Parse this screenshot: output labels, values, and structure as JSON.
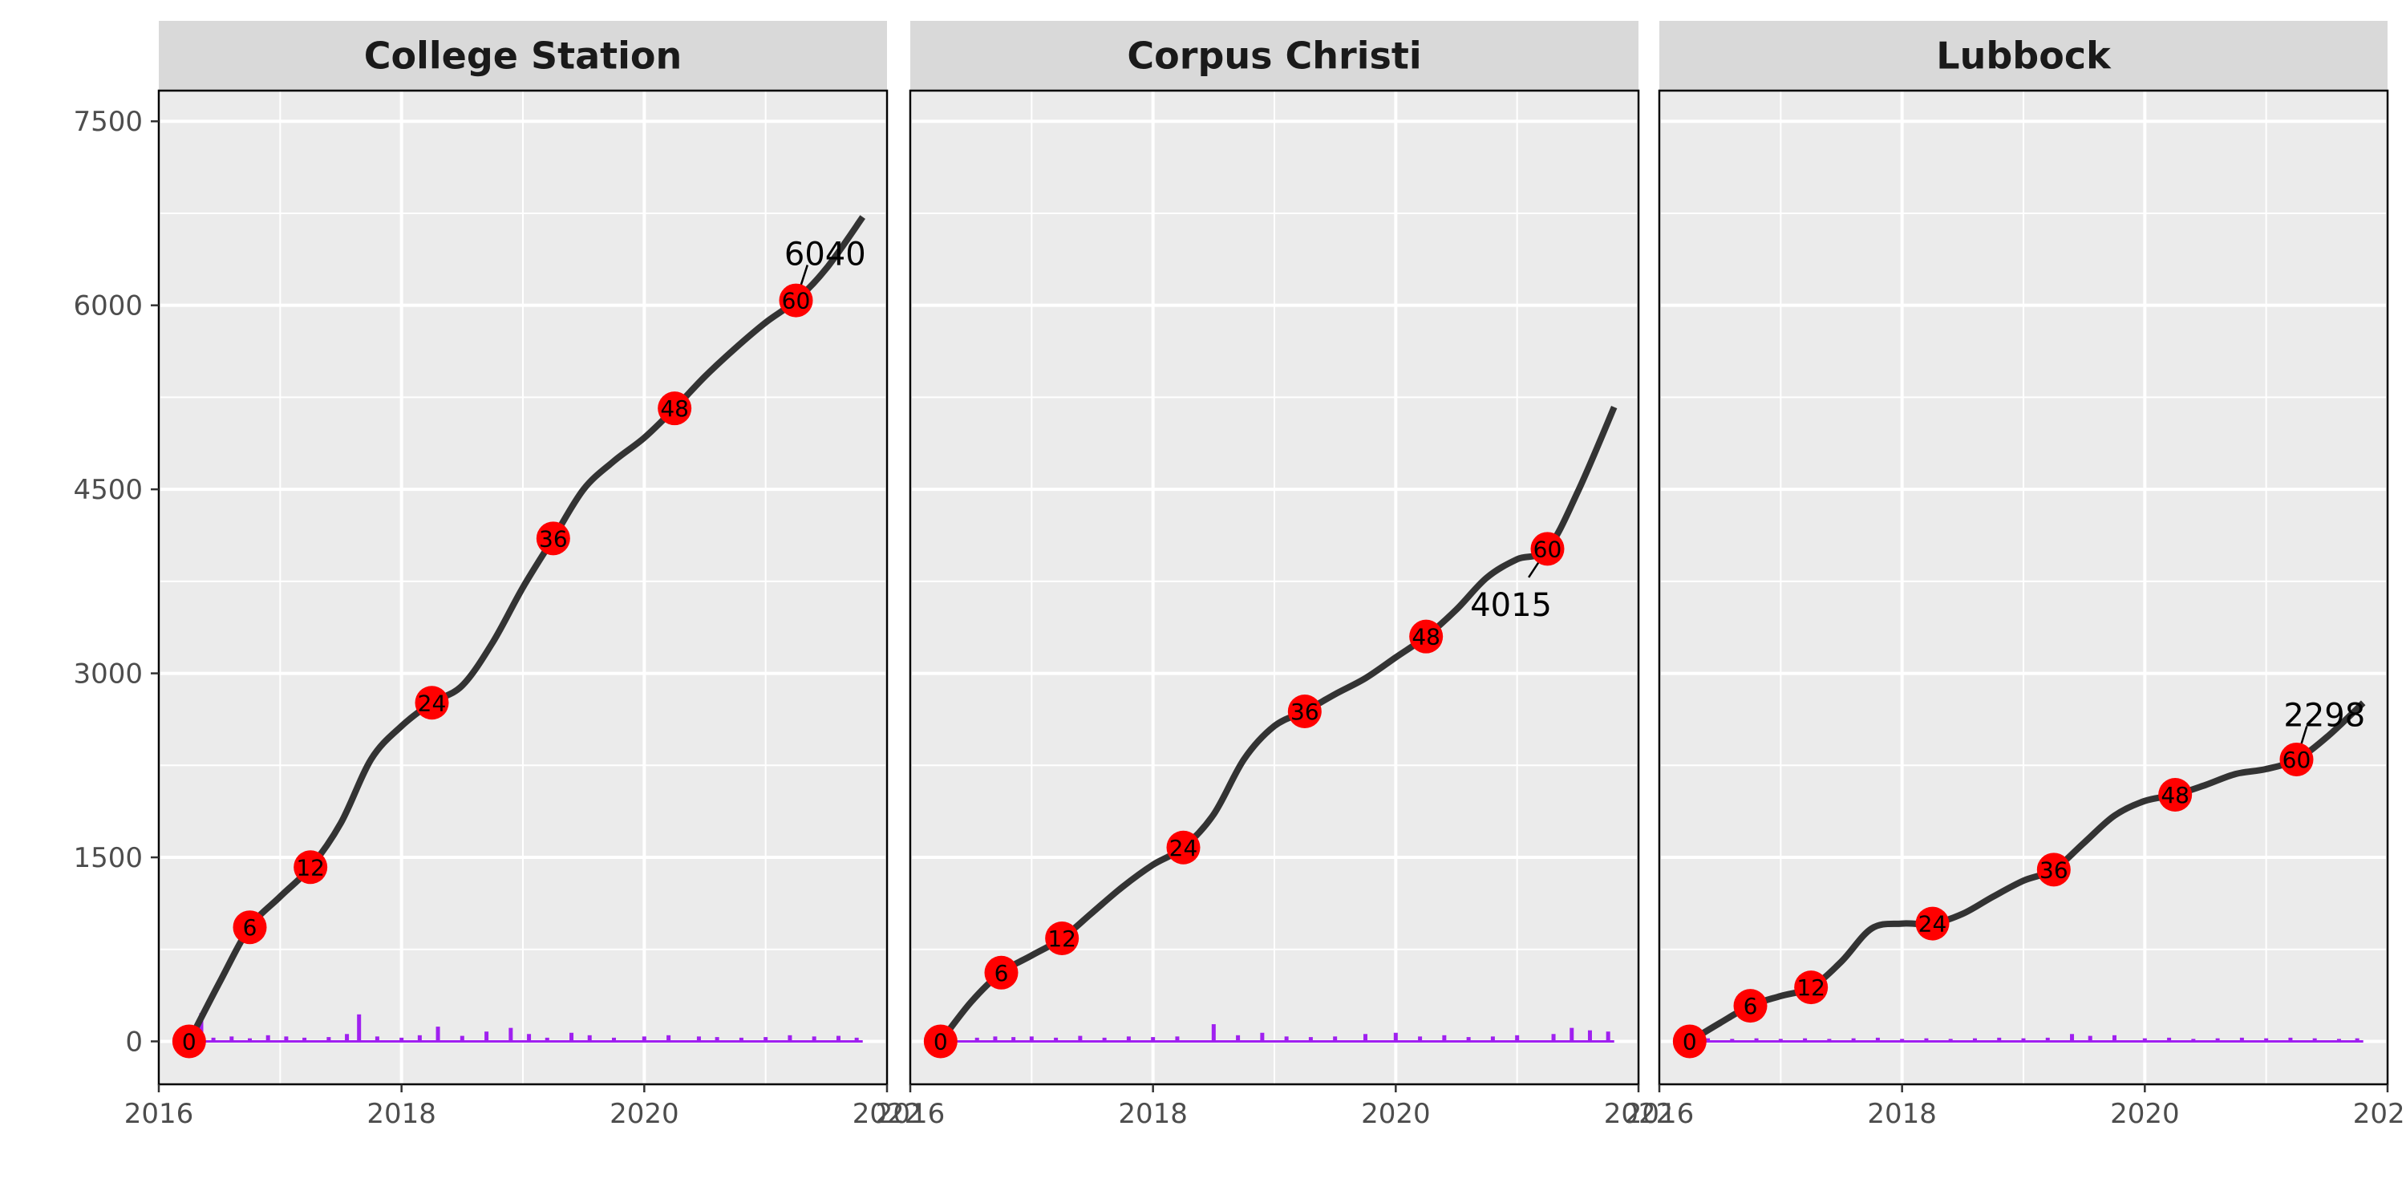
{
  "chart_data": {
    "type": "line",
    "facet_variable": "city",
    "ylim": [
      -350,
      7750
    ],
    "xlim": [
      2016.0,
      2022.0
    ],
    "y_ticks": [
      0,
      1500,
      3000,
      4500,
      6000,
      7500
    ],
    "y_tick_labels": [
      "0",
      "1500",
      "3000",
      "4500",
      "6000",
      "7500"
    ],
    "x_ticks": [
      2016,
      2018,
      2020,
      2022
    ],
    "x_tick_labels": [
      "2016",
      "2018",
      "2020",
      "2022"
    ],
    "grid": true,
    "colors": {
      "panel_background": "#ebebeb",
      "strip_background": "#d9d9d9",
      "grid": "#ffffff",
      "line": "#333333",
      "marker": "#ff0000",
      "bars": "#a020f0"
    },
    "panels": [
      {
        "title": "College Station",
        "cumulative": [
          [
            2016.25,
            0
          ],
          [
            2016.5,
            480
          ],
          [
            2016.75,
            930
          ],
          [
            2017.0,
            1180
          ],
          [
            2017.25,
            1420
          ],
          [
            2017.5,
            1780
          ],
          [
            2017.75,
            2300
          ],
          [
            2018.0,
            2570
          ],
          [
            2018.25,
            2760
          ],
          [
            2018.5,
            2900
          ],
          [
            2018.75,
            3250
          ],
          [
            2019.0,
            3700
          ],
          [
            2019.25,
            4100
          ],
          [
            2019.5,
            4500
          ],
          [
            2019.75,
            4730
          ],
          [
            2020.0,
            4920
          ],
          [
            2020.25,
            5160
          ],
          [
            2020.5,
            5420
          ],
          [
            2020.75,
            5650
          ],
          [
            2021.0,
            5860
          ],
          [
            2021.25,
            6040
          ],
          [
            2021.5,
            6300
          ],
          [
            2021.8,
            6720
          ]
        ],
        "markers": [
          {
            "x": 2016.25,
            "y": 0,
            "label": "0"
          },
          {
            "x": 2016.75,
            "y": 930,
            "label": "6"
          },
          {
            "x": 2017.25,
            "y": 1420,
            "label": "12"
          },
          {
            "x": 2018.25,
            "y": 2760,
            "label": "24"
          },
          {
            "x": 2019.25,
            "y": 4100,
            "label": "36"
          },
          {
            "x": 2020.25,
            "y": 5160,
            "label": "48"
          },
          {
            "x": 2021.25,
            "y": 6040,
            "label": "60"
          }
        ],
        "end_label": {
          "text": "6040",
          "x": 2021.49,
          "y": 6420,
          "point": [
            2021.25,
            6040
          ]
        },
        "bars": [
          [
            2016.35,
            230
          ],
          [
            2016.45,
            30
          ],
          [
            2016.6,
            40
          ],
          [
            2016.75,
            25
          ],
          [
            2016.9,
            50
          ],
          [
            2017.05,
            40
          ],
          [
            2017.2,
            30
          ],
          [
            2017.4,
            35
          ],
          [
            2017.55,
            60
          ],
          [
            2017.65,
            220
          ],
          [
            2017.8,
            40
          ],
          [
            2018.0,
            30
          ],
          [
            2018.15,
            50
          ],
          [
            2018.3,
            120
          ],
          [
            2018.5,
            45
          ],
          [
            2018.7,
            80
          ],
          [
            2018.9,
            110
          ],
          [
            2019.05,
            60
          ],
          [
            2019.2,
            30
          ],
          [
            2019.4,
            70
          ],
          [
            2019.55,
            50
          ],
          [
            2019.75,
            30
          ],
          [
            2020.0,
            40
          ],
          [
            2020.2,
            50
          ],
          [
            2020.45,
            40
          ],
          [
            2020.6,
            35
          ],
          [
            2020.8,
            30
          ],
          [
            2021.0,
            35
          ],
          [
            2021.2,
            50
          ],
          [
            2021.4,
            40
          ],
          [
            2021.6,
            45
          ],
          [
            2021.75,
            30
          ]
        ]
      },
      {
        "title": "Corpus Christi",
        "cumulative": [
          [
            2016.25,
            0
          ],
          [
            2016.5,
            320
          ],
          [
            2016.75,
            560
          ],
          [
            2017.0,
            700
          ],
          [
            2017.25,
            840
          ],
          [
            2017.5,
            1050
          ],
          [
            2017.75,
            1260
          ],
          [
            2018.0,
            1440
          ],
          [
            2018.25,
            1580
          ],
          [
            2018.5,
            1850
          ],
          [
            2018.75,
            2300
          ],
          [
            2019.0,
            2570
          ],
          [
            2019.25,
            2690
          ],
          [
            2019.5,
            2830
          ],
          [
            2019.75,
            2960
          ],
          [
            2020.0,
            3130
          ],
          [
            2020.25,
            3300
          ],
          [
            2020.5,
            3520
          ],
          [
            2020.75,
            3780
          ],
          [
            2021.0,
            3930
          ],
          [
            2021.25,
            4015
          ],
          [
            2021.5,
            4480
          ],
          [
            2021.8,
            5170
          ]
        ],
        "markers": [
          {
            "x": 2016.25,
            "y": 0,
            "label": "0"
          },
          {
            "x": 2016.75,
            "y": 560,
            "label": "6"
          },
          {
            "x": 2017.25,
            "y": 840,
            "label": "12"
          },
          {
            "x": 2018.25,
            "y": 1580,
            "label": "24"
          },
          {
            "x": 2019.25,
            "y": 2690,
            "label": "36"
          },
          {
            "x": 2020.25,
            "y": 3300,
            "label": "48"
          },
          {
            "x": 2021.25,
            "y": 4015,
            "label": "60"
          }
        ],
        "end_label": {
          "text": "4015",
          "x": 2020.95,
          "y": 3560,
          "point": [
            2021.25,
            4015
          ]
        },
        "bars": [
          [
            2016.35,
            60
          ],
          [
            2016.55,
            30
          ],
          [
            2016.7,
            40
          ],
          [
            2016.85,
            35
          ],
          [
            2017.0,
            40
          ],
          [
            2017.2,
            30
          ],
          [
            2017.4,
            45
          ],
          [
            2017.6,
            30
          ],
          [
            2017.8,
            40
          ],
          [
            2018.0,
            35
          ],
          [
            2018.2,
            40
          ],
          [
            2018.5,
            140
          ],
          [
            2018.7,
            50
          ],
          [
            2018.9,
            70
          ],
          [
            2019.1,
            40
          ],
          [
            2019.3,
            35
          ],
          [
            2019.5,
            40
          ],
          [
            2019.75,
            60
          ],
          [
            2020.0,
            70
          ],
          [
            2020.2,
            40
          ],
          [
            2020.4,
            50
          ],
          [
            2020.6,
            35
          ],
          [
            2020.8,
            40
          ],
          [
            2021.0,
            50
          ],
          [
            2021.3,
            60
          ],
          [
            2021.45,
            110
          ],
          [
            2021.6,
            90
          ],
          [
            2021.75,
            80
          ]
        ]
      },
      {
        "title": "Lubbock",
        "cumulative": [
          [
            2016.25,
            0
          ],
          [
            2016.5,
            150
          ],
          [
            2016.75,
            290
          ],
          [
            2017.0,
            370
          ],
          [
            2017.25,
            440
          ],
          [
            2017.5,
            650
          ],
          [
            2017.75,
            920
          ],
          [
            2018.0,
            960
          ],
          [
            2018.25,
            960
          ],
          [
            2018.5,
            1040
          ],
          [
            2018.75,
            1180
          ],
          [
            2019.0,
            1310
          ],
          [
            2019.25,
            1400
          ],
          [
            2019.5,
            1620
          ],
          [
            2019.75,
            1840
          ],
          [
            2020.0,
            1960
          ],
          [
            2020.25,
            2010
          ],
          [
            2020.5,
            2090
          ],
          [
            2020.75,
            2180
          ],
          [
            2021.0,
            2220
          ],
          [
            2021.25,
            2298
          ],
          [
            2021.5,
            2480
          ],
          [
            2021.8,
            2760
          ]
        ],
        "markers": [
          {
            "x": 2016.25,
            "y": 0,
            "label": "0"
          },
          {
            "x": 2016.75,
            "y": 290,
            "label": "6"
          },
          {
            "x": 2017.25,
            "y": 440,
            "label": "12"
          },
          {
            "x": 2018.25,
            "y": 960,
            "label": "24"
          },
          {
            "x": 2019.25,
            "y": 1400,
            "label": "36"
          },
          {
            "x": 2020.25,
            "y": 2010,
            "label": "48"
          },
          {
            "x": 2021.25,
            "y": 2298,
            "label": "60"
          }
        ],
        "end_label": {
          "text": "2298",
          "x": 2021.48,
          "y": 2660,
          "point": [
            2021.25,
            2298
          ]
        },
        "bars": [
          [
            2016.4,
            25
          ],
          [
            2016.6,
            20
          ],
          [
            2016.8,
            25
          ],
          [
            2017.0,
            20
          ],
          [
            2017.2,
            25
          ],
          [
            2017.4,
            20
          ],
          [
            2017.6,
            25
          ],
          [
            2017.8,
            30
          ],
          [
            2018.0,
            20
          ],
          [
            2018.2,
            25
          ],
          [
            2018.4,
            20
          ],
          [
            2018.6,
            25
          ],
          [
            2018.8,
            30
          ],
          [
            2019.0,
            25
          ],
          [
            2019.2,
            30
          ],
          [
            2019.4,
            60
          ],
          [
            2019.55,
            45
          ],
          [
            2019.75,
            50
          ],
          [
            2020.0,
            25
          ],
          [
            2020.2,
            30
          ],
          [
            2020.4,
            20
          ],
          [
            2020.6,
            25
          ],
          [
            2020.8,
            30
          ],
          [
            2021.0,
            25
          ],
          [
            2021.2,
            30
          ],
          [
            2021.4,
            25
          ],
          [
            2021.6,
            20
          ],
          [
            2021.75,
            25
          ]
        ]
      }
    ]
  }
}
